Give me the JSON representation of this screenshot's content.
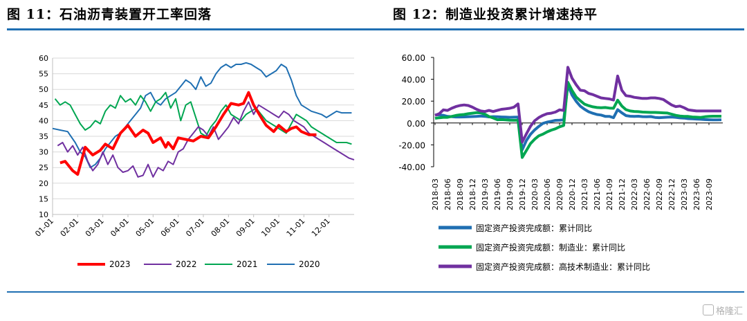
{
  "titles": {
    "left": "图 11：石油沥青装置开工率回落",
    "right": "图 12：制造业投资累计增速持平"
  },
  "watermark": "格隆汇",
  "chart_data": [
    {
      "type": "line",
      "title": "图 11：石油沥青装置开工率回落",
      "x_tick_labels": [
        "01-01",
        "02-01",
        "03-01",
        "04-01",
        "05-01",
        "06-01",
        "07-01",
        "08-01",
        "09-01",
        "10-01",
        "11-01",
        "12-01"
      ],
      "x_range_months": [
        0,
        12
      ],
      "ylim": [
        10,
        60
      ],
      "y_ticks": [
        10,
        15,
        20,
        25,
        30,
        35,
        40,
        45,
        50,
        55,
        60
      ],
      "grid": "horizontal",
      "legend": "bottom",
      "series": [
        {
          "name": "2023",
          "color": "#ff0000",
          "width": 4,
          "x": [
            0.3,
            0.5,
            0.8,
            1.0,
            1.3,
            1.6,
            1.9,
            2.1,
            2.4,
            2.7,
            3.0,
            3.3,
            3.6,
            3.8,
            4.0,
            4.3,
            4.5,
            4.6,
            4.8,
            5.0,
            5.3,
            5.6,
            5.9,
            6.2,
            6.5,
            6.8,
            7.1,
            7.4,
            7.6,
            7.8,
            8.0,
            8.3,
            8.5,
            8.8,
            9.0,
            9.3,
            9.5,
            9.7,
            9.9,
            10.2,
            10.5
          ],
          "y": [
            26.5,
            27,
            24,
            22.8,
            31.5,
            29,
            30.5,
            32.5,
            31,
            36,
            38.5,
            35,
            37,
            36,
            33,
            34.5,
            31.5,
            33,
            31,
            34.5,
            34,
            33.5,
            35,
            34.5,
            38,
            42,
            45.5,
            45,
            45.5,
            49,
            45,
            41,
            38.5,
            36.5,
            38.5,
            36.5,
            37.5,
            38,
            36.5,
            35.5,
            35.5
          ]
        },
        {
          "name": "2022",
          "color": "#7030a0",
          "width": 2,
          "x": [
            0.2,
            0.4,
            0.6,
            0.8,
            1.0,
            1.2,
            1.4,
            1.6,
            1.8,
            2.0,
            2.2,
            2.4,
            2.6,
            2.8,
            3.0,
            3.2,
            3.4,
            3.6,
            3.8,
            4.0,
            4.2,
            4.4,
            4.6,
            4.8,
            5.0,
            5.2,
            5.4,
            5.6,
            5.8,
            6.0,
            6.2,
            6.4,
            6.6,
            6.8,
            7.0,
            7.2,
            7.4,
            7.6,
            7.8,
            8.0,
            8.2,
            8.4,
            8.6,
            8.8,
            9.0,
            9.2,
            9.4,
            9.6,
            9.8,
            10.0,
            10.2,
            10.4,
            10.6,
            10.8,
            11.0,
            11.2,
            11.4,
            11.6,
            11.8,
            12.0
          ],
          "y": [
            32,
            33,
            30,
            32,
            29,
            31.5,
            27,
            24,
            26,
            30,
            26,
            29,
            25,
            23.5,
            24,
            25.5,
            22,
            22.5,
            26,
            22,
            25,
            24,
            27,
            26,
            30,
            31,
            34,
            36,
            38,
            37,
            35,
            38,
            34,
            36,
            38,
            41,
            39,
            43,
            46,
            42,
            45,
            44,
            43,
            42,
            41,
            43,
            42,
            40,
            39,
            38,
            36,
            35,
            34,
            33,
            32,
            31,
            30,
            29,
            28,
            27.5
          ]
        },
        {
          "name": "2021",
          "color": "#00a651",
          "width": 2,
          "x": [
            0.1,
            0.3,
            0.5,
            0.7,
            0.9,
            1.1,
            1.3,
            1.5,
            1.7,
            1.9,
            2.1,
            2.3,
            2.5,
            2.7,
            2.9,
            3.1,
            3.3,
            3.5,
            3.7,
            3.9,
            4.1,
            4.3,
            4.5,
            4.7,
            4.9,
            5.1,
            5.3,
            5.5,
            5.7,
            5.9,
            6.1,
            6.3,
            6.5,
            6.7,
            6.9,
            7.1,
            7.3,
            7.5,
            7.7,
            7.9,
            8.1,
            8.3,
            8.5,
            8.7,
            8.9,
            9.1,
            9.3,
            9.5,
            9.7,
            9.9,
            10.1,
            10.3,
            10.5,
            10.7,
            10.9,
            11.1,
            11.3,
            11.5,
            11.7,
            11.9
          ],
          "y": [
            47,
            45,
            46,
            45,
            42,
            39,
            37,
            38,
            40,
            39,
            43,
            45,
            44,
            48,
            46,
            47,
            45,
            48,
            46,
            43,
            46,
            47,
            49,
            44,
            47,
            40,
            45,
            46,
            41,
            36,
            35,
            38,
            40,
            43,
            45,
            42,
            41,
            40,
            42,
            43,
            44,
            42,
            40,
            39,
            38,
            37,
            36,
            39,
            42,
            41,
            40,
            38,
            37,
            36,
            35,
            34,
            33,
            33,
            33,
            32.5
          ]
        },
        {
          "name": "2020",
          "color": "#1f6fb2",
          "width": 2,
          "x": [
            0.0,
            0.3,
            0.6,
            0.9,
            1.1,
            1.3,
            1.5,
            1.7,
            1.9,
            2.1,
            2.3,
            2.5,
            2.7,
            2.9,
            3.1,
            3.3,
            3.5,
            3.7,
            3.9,
            4.1,
            4.3,
            4.5,
            4.7,
            4.9,
            5.1,
            5.3,
            5.5,
            5.7,
            5.9,
            6.1,
            6.3,
            6.5,
            6.7,
            6.9,
            7.1,
            7.3,
            7.5,
            7.7,
            7.9,
            8.1,
            8.3,
            8.5,
            8.7,
            8.9,
            9.1,
            9.3,
            9.5,
            9.7,
            9.9,
            10.1,
            10.3,
            10.5,
            10.7,
            10.9,
            11.1,
            11.3,
            11.5,
            11.7,
            11.9
          ],
          "y": [
            37.5,
            37,
            36.5,
            33,
            30,
            28.5,
            25,
            26,
            28,
            31,
            33,
            35,
            36,
            38,
            40,
            42,
            44,
            48,
            49,
            46,
            45,
            47,
            48,
            49,
            51,
            53,
            52,
            50,
            54,
            51,
            52,
            55,
            57,
            58,
            57,
            58,
            58,
            58.5,
            58,
            57,
            56,
            54,
            55,
            56,
            58,
            57,
            53,
            48,
            45,
            44,
            43,
            42.5,
            42,
            41,
            42,
            43,
            42.5,
            42.5,
            42.5
          ]
        }
      ]
    },
    {
      "type": "line",
      "title": "图 12：制造业投资累计增速持平",
      "x_tick_labels": [
        "2018-03",
        "2018-06",
        "2018-09",
        "2018-12",
        "2019-03",
        "2019-06",
        "2019-09",
        "2019-12",
        "2020-03",
        "2020-06",
        "2020-09",
        "2020-12",
        "2021-03",
        "2021-06",
        "2021-09",
        "2021-12",
        "2022-03",
        "2022-06",
        "2022-09",
        "2022-12",
        "2023-03",
        "2023-06",
        "2023-09"
      ],
      "ylim": [
        -40,
        60
      ],
      "y_ticks": [
        "-40.00",
        "-20.00",
        "0.00",
        "20.00",
        "40.00",
        "60.00"
      ],
      "grid": "none",
      "legend": "bottom",
      "series": [
        {
          "name": "固定资产投资完成额：累计同比",
          "color": "#1f6fb2",
          "width": 4,
          "x": [
            0,
            1,
            2,
            3,
            4,
            5,
            6,
            7,
            8,
            9,
            10,
            11,
            12,
            13,
            14,
            15,
            16,
            17,
            18,
            19,
            20,
            21,
            22,
            23,
            24,
            25,
            26,
            27,
            28,
            29,
            30,
            31,
            32,
            33,
            34,
            35,
            36,
            37,
            38,
            39,
            40,
            41,
            42,
            43,
            44,
            45,
            46,
            47,
            48,
            49,
            50,
            51,
            52,
            53,
            54,
            55,
            56,
            57,
            58,
            59,
            60,
            61,
            62,
            63,
            64,
            65,
            66,
            67,
            68,
            69
          ],
          "y": [
            7.5,
            7.5,
            7.0,
            6.0,
            5.8,
            5.5,
            5.5,
            5.6,
            5.7,
            5.9,
            6.1,
            6.3,
            6.1,
            5.6,
            5.8,
            5.7,
            5.5,
            5.4,
            5.2,
            5.3,
            5.4,
            -24.5,
            -16.1,
            -10.3,
            -6.3,
            -3.1,
            -0.3,
            0.8,
            1.6,
            2.4,
            2.6,
            2.9,
            35.0,
            25.6,
            19.9,
            15.4,
            12.6,
            10.3,
            8.9,
            7.8,
            7.3,
            6.1,
            6.1,
            4.9,
            12.2,
            9.3,
            6.8,
            6.2,
            6.1,
            6.2,
            5.8,
            5.7,
            5.9,
            5.1,
            4.9,
            5.1,
            5.3,
            5.5,
            5.2,
            4.7,
            4.5,
            4.0,
            3.8,
            3.6,
            3.4,
            3.1,
            3.0,
            2.9,
            2.9,
            3.0
          ]
        },
        {
          "name": "固定资产投资完成额：制造业：累计同比",
          "color": "#00a651",
          "width": 4,
          "x": [
            0,
            1,
            2,
            3,
            4,
            5,
            6,
            7,
            8,
            9,
            10,
            11,
            12,
            13,
            14,
            15,
            16,
            17,
            18,
            19,
            20,
            21,
            22,
            23,
            24,
            25,
            26,
            27,
            28,
            29,
            30,
            31,
            32,
            33,
            34,
            35,
            36,
            37,
            38,
            39,
            40,
            41,
            42,
            43,
            44,
            45,
            46,
            47,
            48,
            49,
            50,
            51,
            52,
            53,
            54,
            55,
            56,
            57,
            58,
            59,
            60,
            61,
            62,
            63,
            64,
            65,
            66,
            67,
            68,
            69
          ],
          "y": [
            4.3,
            4.8,
            5.2,
            5.2,
            6.0,
            6.9,
            7.5,
            7.8,
            8.5,
            9.0,
            9.5,
            9.3,
            8.1,
            5.9,
            4.6,
            3.0,
            3.1,
            2.9,
            2.6,
            2.5,
            2.5,
            -31.5,
            -25.2,
            -18.8,
            -14.8,
            -11.7,
            -10.2,
            -8.1,
            -6.5,
            -5.3,
            -3.5,
            -2.2,
            37.3,
            29.8,
            23.8,
            20.4,
            17.3,
            15.9,
            14.8,
            14.2,
            14.0,
            14.2,
            13.7,
            13.5,
            20.9,
            15.6,
            12.2,
            11.0,
            10.6,
            10.4,
            10.0,
            9.8,
            9.7,
            9.7,
            9.5,
            9.3,
            9.1,
            8.1,
            7.0,
            6.4,
            6.0,
            6.0,
            5.5,
            5.3,
            5.1,
            5.7,
            6.0,
            6.2,
            6.2,
            6.2
          ]
        },
        {
          "name": "固定资产投资完成额：高技术制造业：累计同比",
          "color": "#7030a0",
          "width": 4,
          "x": [
            0,
            1,
            2,
            3,
            4,
            5,
            6,
            7,
            8,
            9,
            10,
            11,
            12,
            13,
            14,
            15,
            16,
            17,
            18,
            19,
            20,
            21,
            22,
            23,
            24,
            25,
            26,
            27,
            28,
            29,
            30,
            31,
            32,
            33,
            34,
            35,
            36,
            37,
            38,
            39,
            40,
            41,
            42,
            43,
            44,
            45,
            46,
            47,
            48,
            49,
            50,
            51,
            52,
            53,
            54,
            55,
            56,
            57,
            58,
            59,
            60,
            61,
            62,
            63,
            64,
            65,
            66,
            67,
            68,
            69
          ],
          "y": [
            7.0,
            8.5,
            12.0,
            11.5,
            13.5,
            15.0,
            16.0,
            16.5,
            16.0,
            14.5,
            12.5,
            11.0,
            10.5,
            11.5,
            10.5,
            11.5,
            12.5,
            13.0,
            13.5,
            14.5,
            17.5,
            -17.5,
            -10.0,
            -3.0,
            2.0,
            5.0,
            7.0,
            8.5,
            9.0,
            10.0,
            12.0,
            11.5,
            51.0,
            41.0,
            35.0,
            30.0,
            29.5,
            27.0,
            26.0,
            24.5,
            23.0,
            22.5,
            22.0,
            21.0,
            43.0,
            30.0,
            25.0,
            24.5,
            23.5,
            23.0,
            22.5,
            22.5,
            23.0,
            23.0,
            22.5,
            21.5,
            19.0,
            16.5,
            15.0,
            15.5,
            14.0,
            12.0,
            11.5,
            11.0,
            11.0,
            11.0,
            11.0,
            11.0,
            11.0,
            11.0
          ]
        }
      ]
    }
  ]
}
